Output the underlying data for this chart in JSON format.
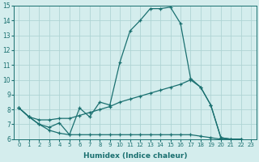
{
  "xlabel": "Humidex (Indice chaleur)",
  "xlim": [
    -0.5,
    23.5
  ],
  "ylim": [
    6,
    15
  ],
  "xticks": [
    0,
    1,
    2,
    3,
    4,
    5,
    6,
    7,
    8,
    9,
    10,
    11,
    12,
    13,
    14,
    15,
    16,
    17,
    18,
    19,
    20,
    21,
    22,
    23
  ],
  "yticks": [
    6,
    7,
    8,
    9,
    10,
    11,
    12,
    13,
    14,
    15
  ],
  "bg_color": "#d4eded",
  "grid_color": "#afd4d4",
  "line_color": "#1a7070",
  "line1_x": [
    0,
    1,
    2,
    3,
    4,
    5,
    6,
    7,
    8,
    9,
    10,
    11,
    12,
    13,
    14,
    15,
    16,
    17,
    18,
    19,
    20,
    21,
    22
  ],
  "line1_y": [
    8.1,
    7.5,
    7.0,
    6.8,
    7.1,
    6.3,
    8.1,
    7.5,
    8.5,
    8.3,
    11.2,
    13.3,
    14.0,
    14.8,
    14.8,
    14.9,
    13.8,
    10.1,
    9.5,
    8.3,
    6.1,
    6.0,
    6.0
  ],
  "line2_x": [
    0,
    1,
    2,
    3,
    4,
    5,
    6,
    7,
    8,
    9,
    10,
    11,
    12,
    13,
    14,
    15,
    16,
    17,
    18,
    19,
    20,
    21,
    22
  ],
  "line2_y": [
    8.1,
    7.5,
    7.0,
    6.6,
    6.4,
    6.3,
    6.3,
    6.3,
    6.3,
    6.3,
    6.3,
    6.3,
    6.3,
    6.3,
    6.3,
    6.3,
    6.3,
    6.3,
    6.2,
    6.1,
    6.0,
    6.0,
    6.0
  ],
  "line3_x": [
    0,
    1,
    2,
    3,
    4,
    5,
    6,
    7,
    8,
    9,
    10,
    11,
    12,
    13,
    14,
    15,
    16,
    17,
    18,
    19,
    20,
    21,
    22
  ],
  "line3_y": [
    8.1,
    7.5,
    7.3,
    7.3,
    7.4,
    7.4,
    7.6,
    7.8,
    8.0,
    8.2,
    8.5,
    8.7,
    8.9,
    9.1,
    9.3,
    9.5,
    9.7,
    10.0,
    9.5,
    8.3,
    6.1,
    6.0,
    6.0
  ]
}
